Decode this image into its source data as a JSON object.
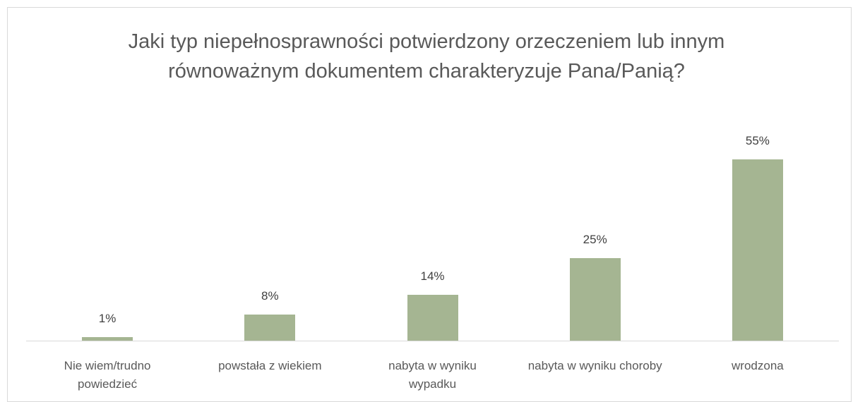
{
  "chart_data": {
    "type": "bar",
    "title": "Jaki typ niepełnosprawności potwierdzony orzeczeniem lub innym równoważnym dokumentem charakteryzuje Pana/Panią?",
    "categories": [
      "Nie wiem/trudno powiedzieć",
      "powstała z wiekiem",
      "nabyta w wyniku wypadku",
      "nabyta w wyniku choroby",
      "wrodzona"
    ],
    "values": [
      1,
      8,
      14,
      25,
      55
    ],
    "value_labels": [
      "1%",
      "8%",
      "14%",
      "25%",
      "55%"
    ],
    "color": "#a5b592"
  }
}
